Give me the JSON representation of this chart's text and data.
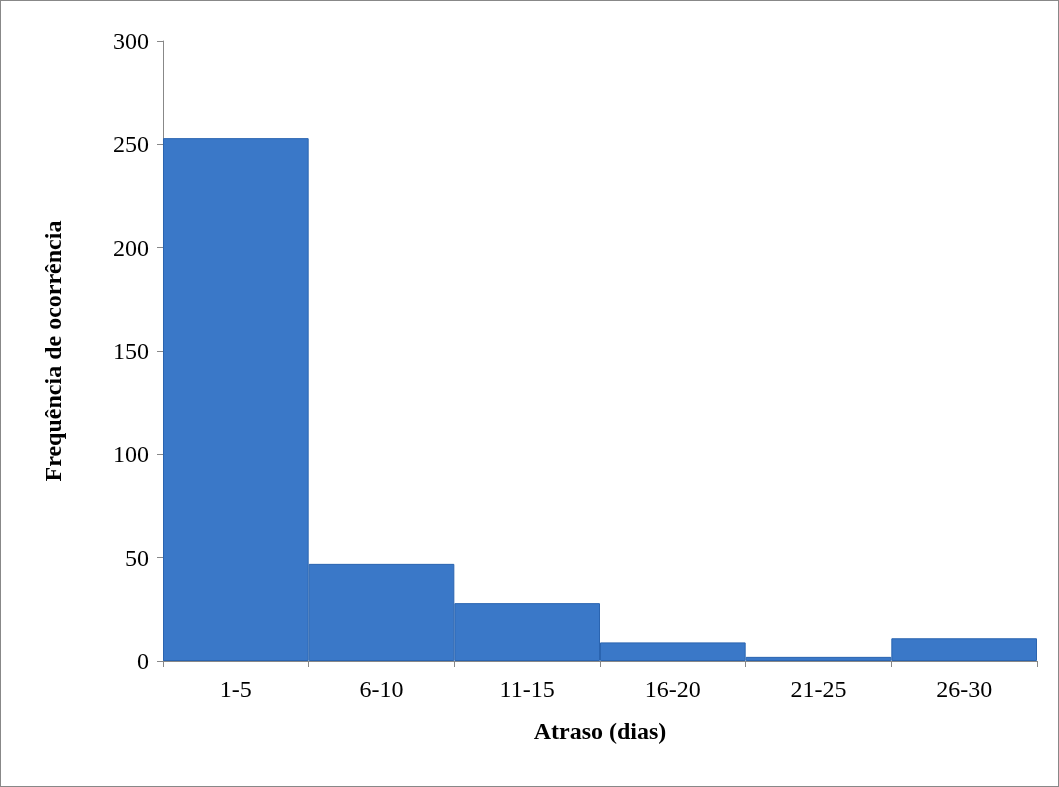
{
  "chart_data": {
    "type": "bar",
    "xlabel": "Atraso (dias)",
    "ylabel": "Frequência de ocorrência",
    "categories": [
      "1-5",
      "6-10",
      "11-15",
      "16-20",
      "21-25",
      "26-30"
    ],
    "values": [
      253,
      47,
      28,
      9,
      2,
      11
    ],
    "color": "#3a78c8",
    "ylim": [
      0,
      300
    ],
    "yticks": [
      0,
      50,
      100,
      150,
      200,
      250,
      300
    ],
    "grid": false
  }
}
